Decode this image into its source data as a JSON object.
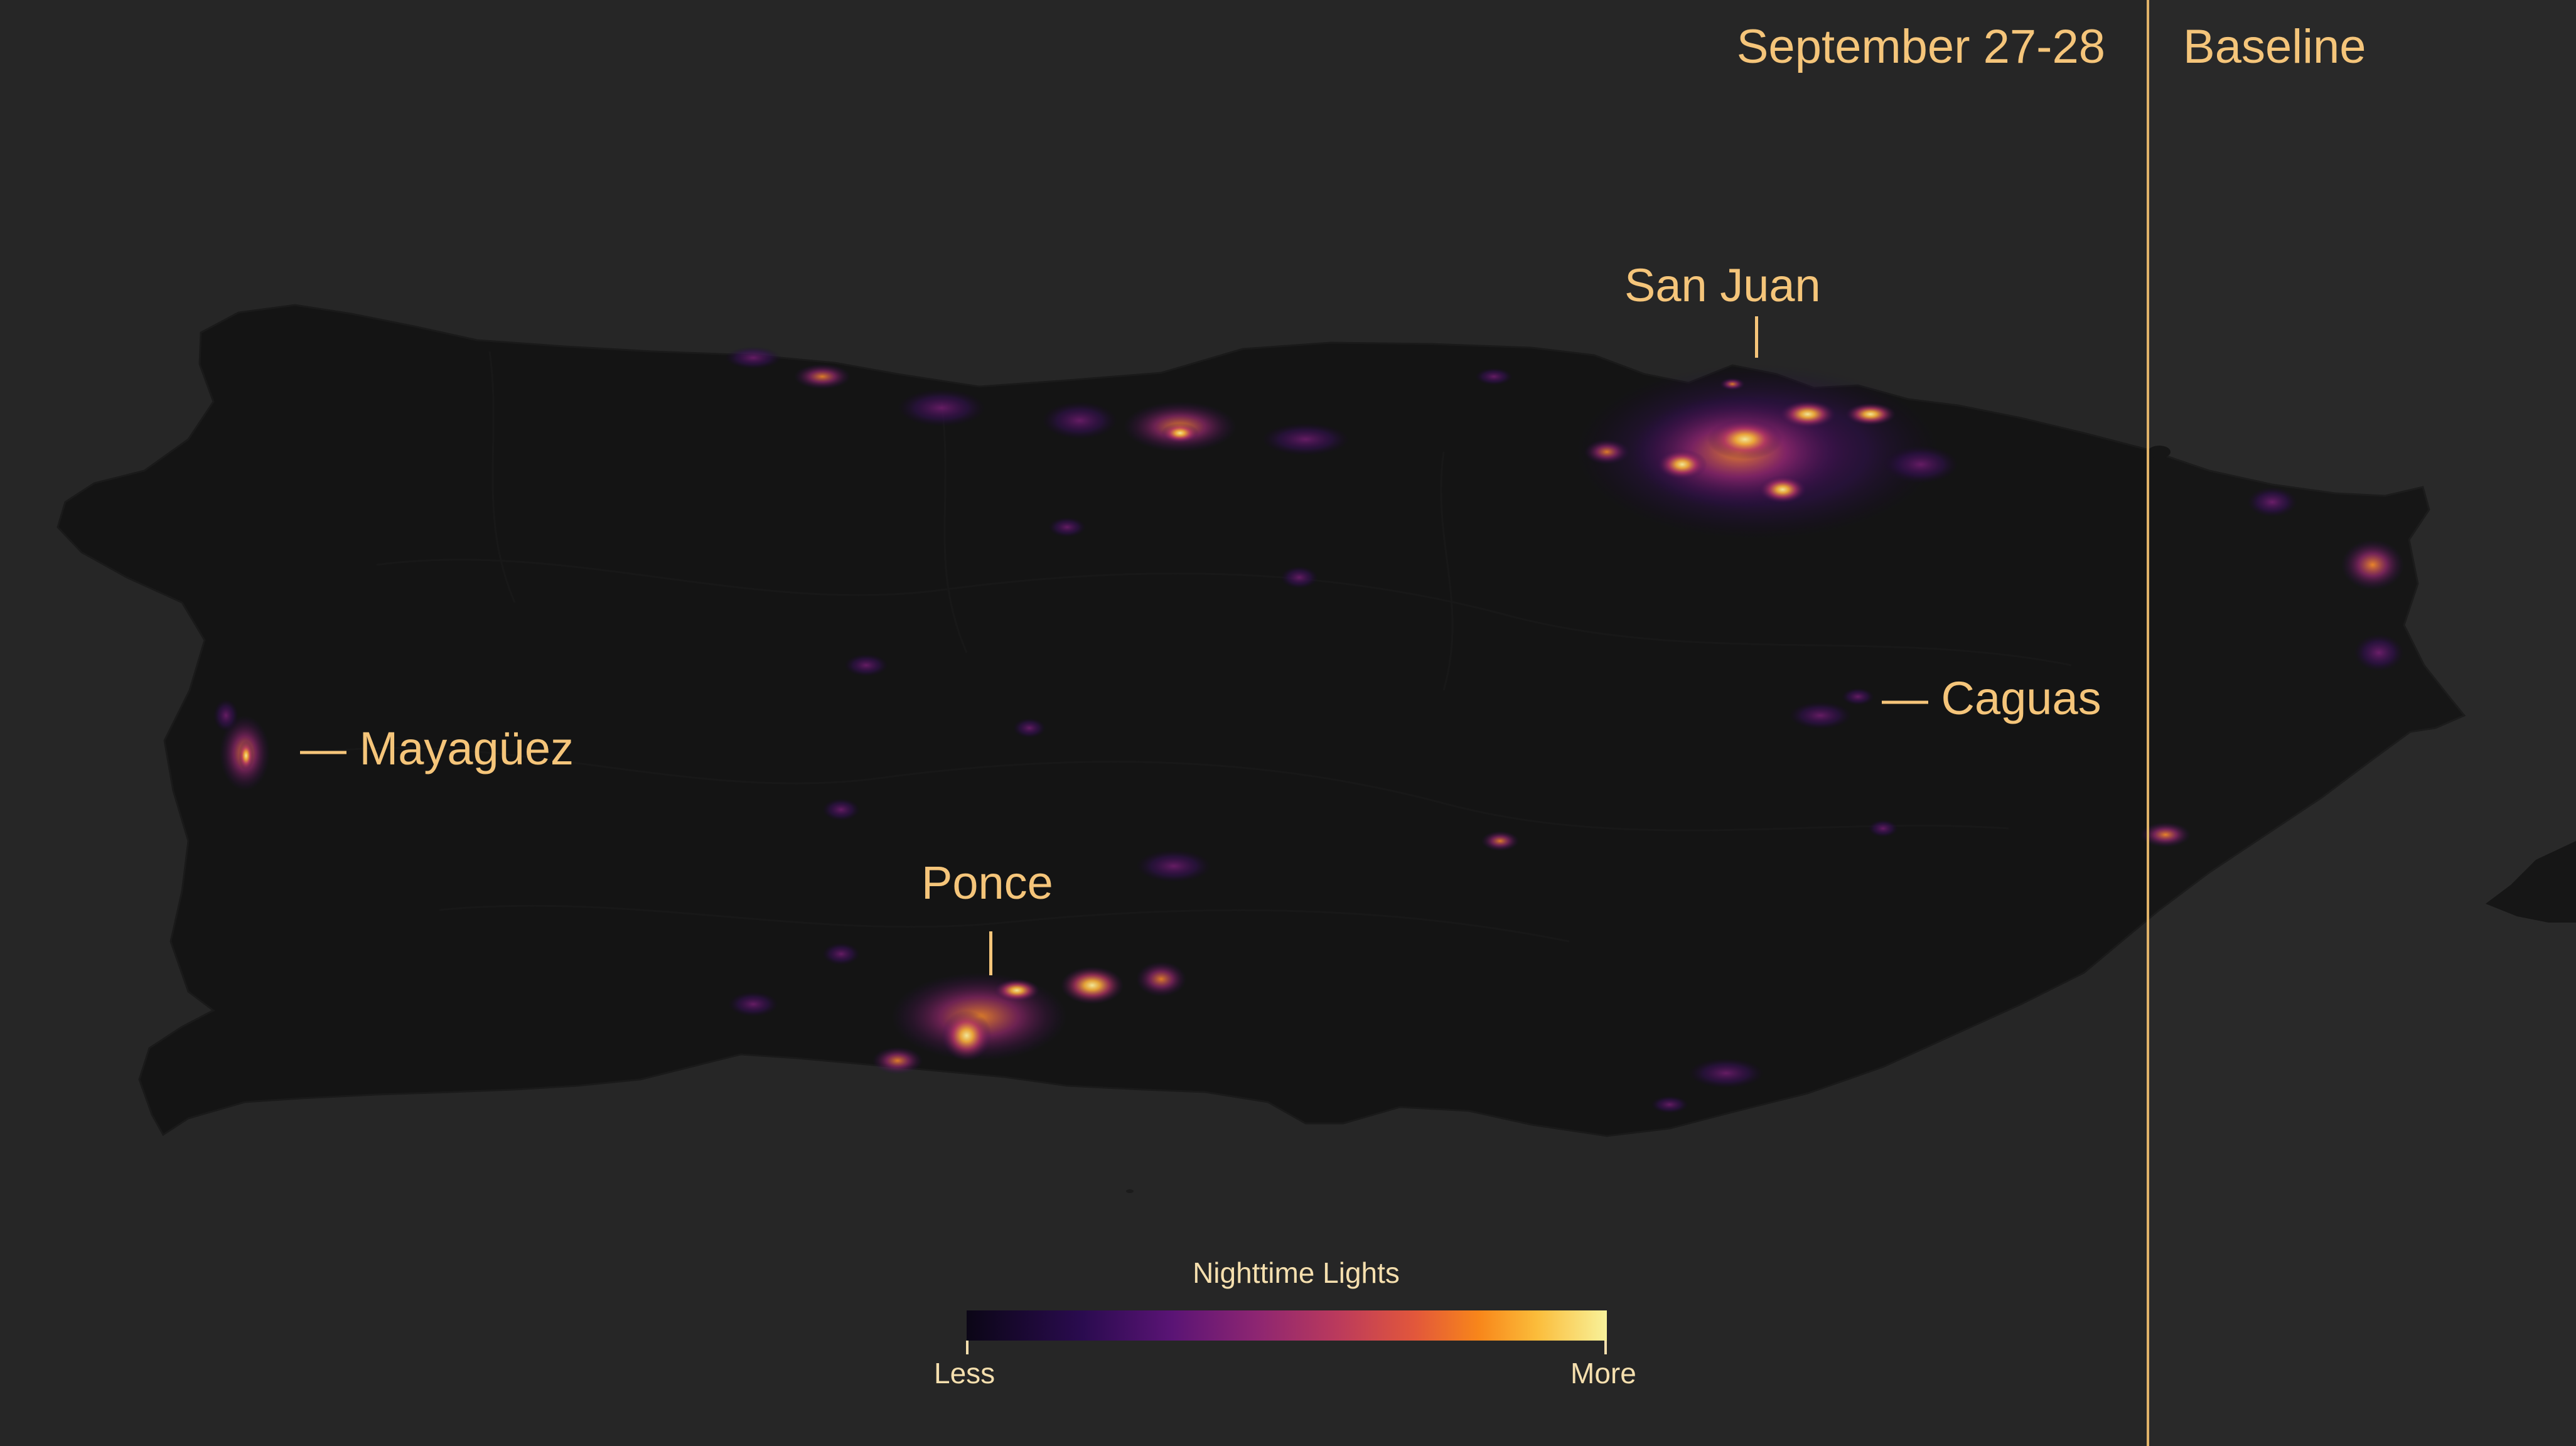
{
  "panels": {
    "left_label": "September 27-28",
    "right_label": "Baseline"
  },
  "cities": {
    "san_juan": "San Juan",
    "mayaguez": "— Mayagüez",
    "ponce": "Ponce",
    "caguas": "— Caguas"
  },
  "legend": {
    "title": "Nighttime Lights",
    "min_label": "Less",
    "max_label": "More",
    "colors": [
      "#0b0616",
      "#2a0b4f",
      "#5a1475",
      "#8c2572",
      "#bb3a5c",
      "#e2573b",
      "#f8861a",
      "#fbbc3a",
      "#f8f29a"
    ]
  },
  "colors": {
    "background": "#292929",
    "land": "#161616",
    "accent": "#f5c57a",
    "divider": "#e0b268"
  }
}
